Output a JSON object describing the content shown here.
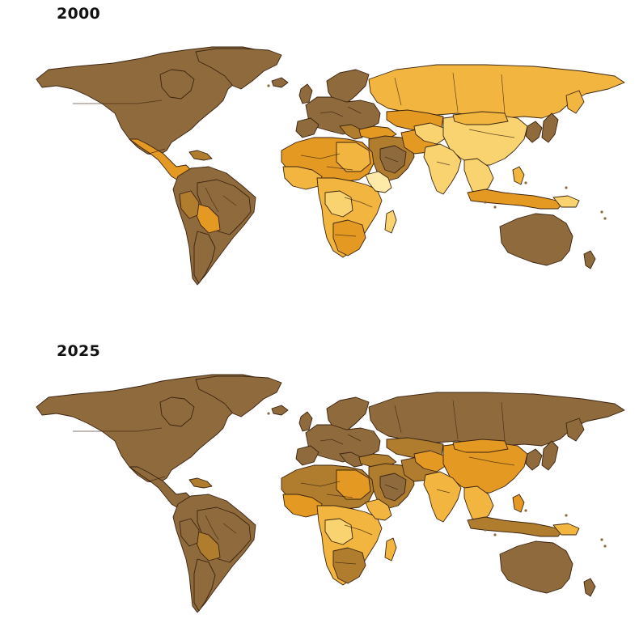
{
  "maps": [
    {
      "label": "2000"
    },
    {
      "label": "2025"
    }
  ],
  "colors": {
    "very_dark": "#8f6a3c",
    "dark": "#b07d2e",
    "medium": "#e49a22",
    "light": "#f2b640",
    "pale": "#f8d370",
    "palest": "#fdeaa8",
    "stroke": "#3a2410"
  }
}
